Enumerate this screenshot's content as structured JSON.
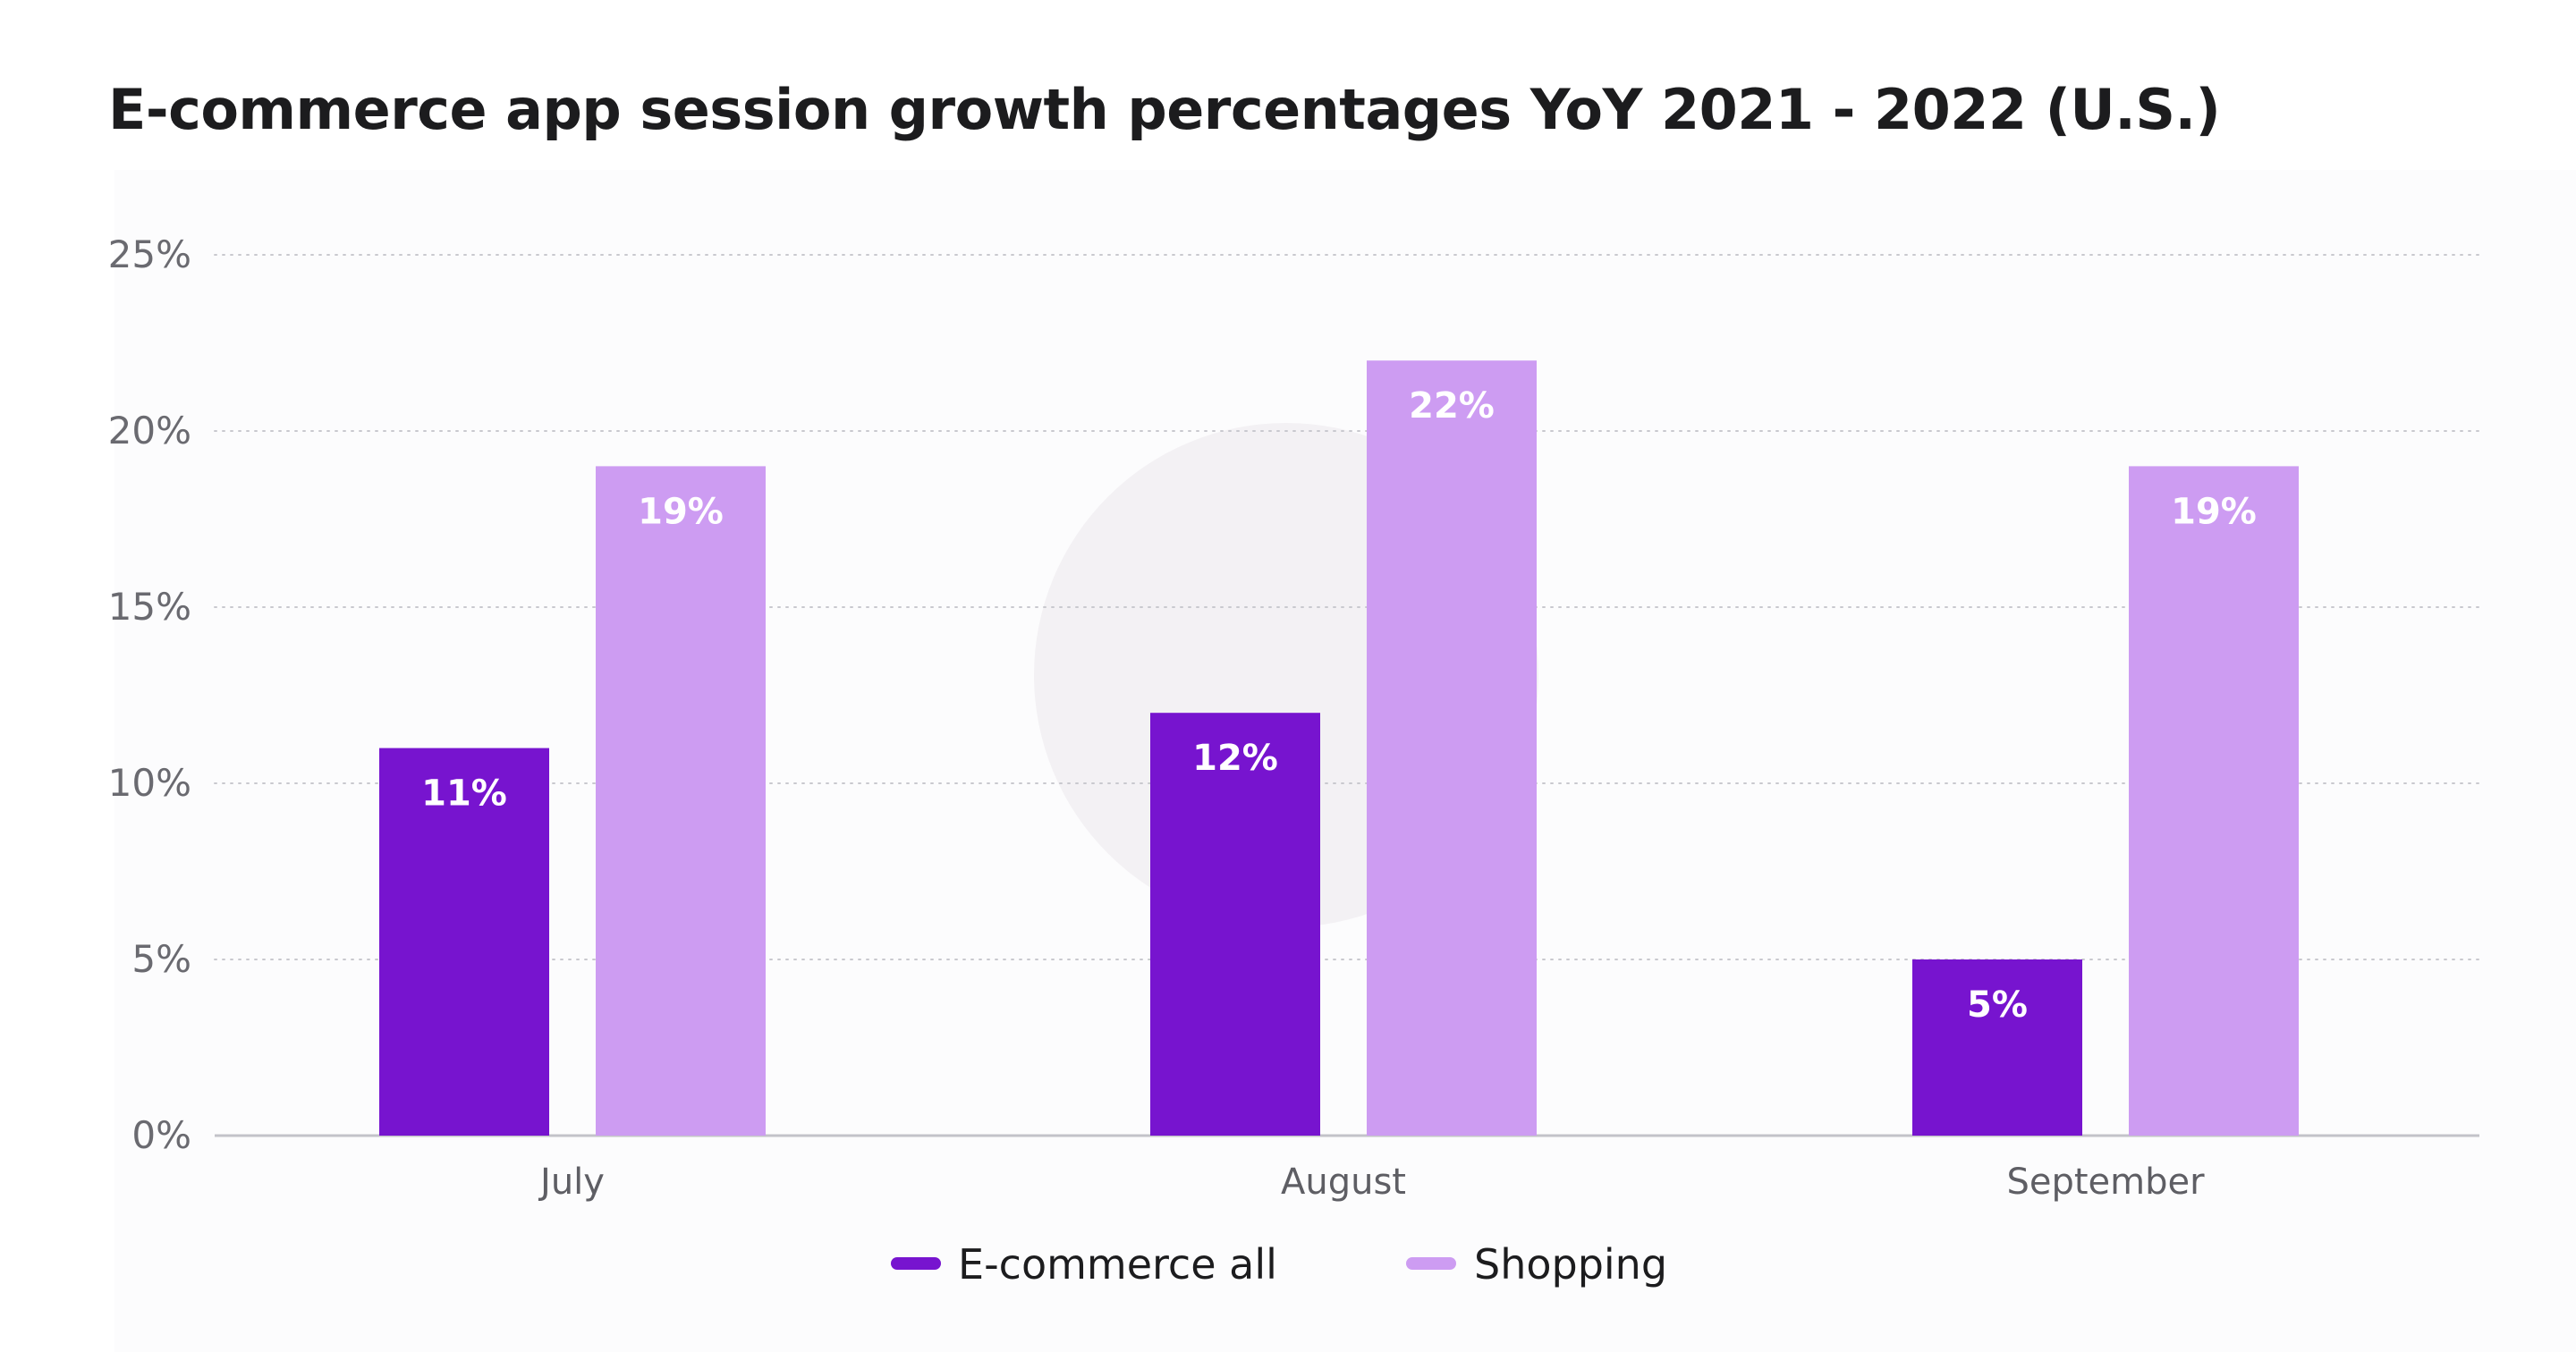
{
  "chart_data": {
    "type": "bar",
    "title": "E-commerce app session growth percentages YoY 2021 - 2022 (U.S.)",
    "xlabel": "",
    "ylabel": "",
    "categories": [
      "July",
      "August",
      "September"
    ],
    "series": [
      {
        "name": "E-commerce all",
        "values": [
          11,
          12,
          5
        ],
        "labels": [
          "11%",
          "12%",
          "5%"
        ],
        "color": "#7714cf"
      },
      {
        "name": "Shopping",
        "values": [
          19,
          22,
          19
        ],
        "labels": [
          "19%",
          "22%",
          "19%"
        ],
        "color": "#cd9cf2"
      }
    ],
    "ylim": [
      0,
      25
    ],
    "yticks": [
      0,
      5,
      10,
      15,
      20,
      25
    ],
    "ytick_labels": [
      "0%",
      "5%",
      "10%",
      "15%",
      "20%",
      "25%"
    ],
    "grid": true,
    "legend_position": "bottom-center"
  },
  "colors": {
    "grid": "#c9c9cf",
    "axis": "#c3c3c9",
    "watermark": "#f3f1f4"
  }
}
